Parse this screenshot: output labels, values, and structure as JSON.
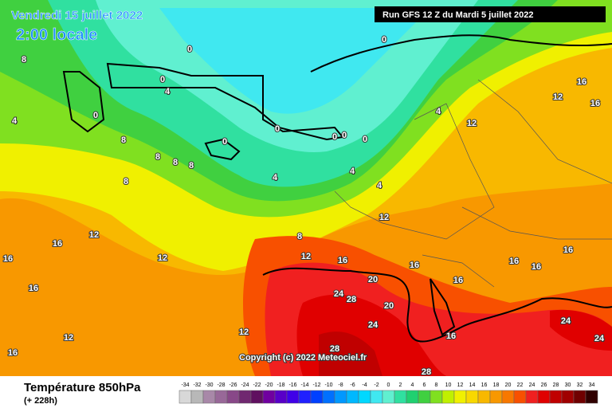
{
  "header": {
    "date": "Vendredi 15 juillet 2022",
    "local_time": "2:00 locale",
    "run": "Run GFS 12 Z du Mardi 5 juillet 2022"
  },
  "copyright": "Copyright (c) 2022 Meteociel.fr",
  "footer": {
    "title": "Température 850hPa",
    "lead": "(+ 228h)"
  },
  "legend": {
    "ticks": [
      -34,
      -32,
      -30,
      -28,
      -26,
      -24,
      -22,
      -20,
      -18,
      -16,
      -14,
      -12,
      -10,
      -8,
      -6,
      -4,
      -2,
      0,
      2,
      4,
      6,
      8,
      10,
      12,
      14,
      16,
      18,
      20,
      22,
      24,
      26,
      28,
      30,
      32,
      34
    ],
    "colors": [
      "#d8d8d8",
      "#b8b8b8",
      "#a888a8",
      "#986898",
      "#884888",
      "#702870",
      "#601060",
      "#7000a0",
      "#5800c8",
      "#4000e8",
      "#2020ff",
      "#0040ff",
      "#0070ff",
      "#0098ff",
      "#00b8ff",
      "#00d8ff",
      "#40e8f0",
      "#60f0d0",
      "#30e0a0",
      "#20d070",
      "#40d040",
      "#80e020",
      "#c0f000",
      "#f0f000",
      "#f8d800",
      "#f8b800",
      "#f89800",
      "#f87800",
      "#f85000",
      "#f02020",
      "#e00000",
      "#c00000",
      "#a00000",
      "#700000",
      "#300000"
    ]
  },
  "contour_labels": [
    0,
    0,
    0,
    0,
    0,
    0,
    0,
    0,
    0,
    4,
    4,
    4,
    4,
    4,
    4,
    8,
    8,
    8,
    8,
    8,
    8,
    8,
    12,
    12,
    12,
    12,
    12,
    12,
    12,
    12,
    16,
    16,
    16,
    16,
    16,
    16,
    16,
    16,
    16,
    16,
    16,
    16,
    16,
    20,
    20,
    24,
    24,
    24,
    24,
    28,
    28,
    28
  ]
}
